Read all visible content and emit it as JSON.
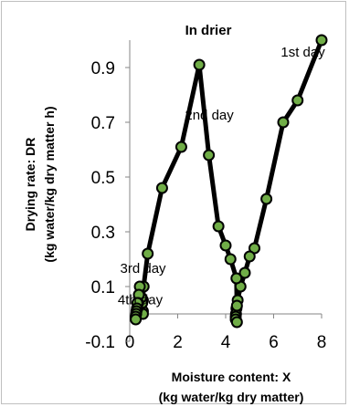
{
  "chart_data": {
    "type": "scatter",
    "title": "In drier",
    "xlabel_line1": "Moisture content: X",
    "xlabel_line2": "(kg water/kg dry matter)",
    "ylabel_line1": "Drying rate: DR",
    "ylabel_line2": "(kg water/kg dry matter h)",
    "xlim": [
      0,
      8
    ],
    "ylim": [
      -0.1,
      1.0
    ],
    "xticks": [
      "0",
      "2",
      "4",
      "6",
      "8"
    ],
    "yticks": [
      "-0.1",
      "0.1",
      "0.3",
      "0.5",
      "0.7",
      "0.9"
    ],
    "xtick_values": [
      0,
      2,
      4,
      6,
      8
    ],
    "ytick_values": [
      -0.1,
      0.1,
      0.3,
      0.5,
      0.7,
      0.9
    ],
    "grid": false,
    "legend": "none",
    "line_color": "#000000",
    "marker_color": "#70ad47",
    "series": [
      {
        "points": [
          [
            8.0,
            1.0
          ],
          [
            7.0,
            0.78
          ],
          [
            6.4,
            0.7
          ],
          [
            5.7,
            0.42
          ],
          [
            5.2,
            0.24
          ],
          [
            5.0,
            0.21
          ],
          [
            4.8,
            0.15
          ],
          [
            4.62,
            0.1
          ],
          [
            4.5,
            0.05
          ],
          [
            4.45,
            0.02
          ],
          [
            4.43,
            0.0
          ],
          [
            4.42,
            -0.01
          ],
          [
            4.42,
            -0.02
          ]
        ]
      },
      {
        "points": [
          [
            4.47,
            -0.03
          ],
          [
            4.47,
            0.03
          ],
          [
            4.45,
            0.13
          ],
          [
            4.2,
            0.2
          ],
          [
            4.0,
            0.25
          ],
          [
            3.7,
            0.32
          ],
          [
            3.3,
            0.58
          ],
          [
            2.9,
            0.91
          ],
          [
            2.15,
            0.61
          ],
          [
            1.35,
            0.46
          ],
          [
            0.75,
            0.22
          ],
          [
            0.58,
            0.1
          ],
          [
            0.55,
            0.05
          ],
          [
            0.55,
            0.01
          ]
        ]
      },
      {
        "points": [
          [
            0.55,
            0.0
          ],
          [
            0.52,
            0.04
          ],
          [
            0.48,
            0.06
          ],
          [
            0.42,
            0.1
          ],
          [
            0.38,
            0.07
          ],
          [
            0.35,
            0.04
          ],
          [
            0.32,
            0.02
          ]
        ]
      },
      {
        "points": [
          [
            0.32,
            0.04
          ],
          [
            0.3,
            0.02
          ],
          [
            0.28,
            0.01
          ],
          [
            0.27,
            0.0
          ],
          [
            0.25,
            -0.01
          ],
          [
            0.25,
            -0.02
          ]
        ]
      }
    ],
    "annotations": [
      {
        "text": "1st day",
        "x": 6.3,
        "y": 0.94
      },
      {
        "text": "2nd day",
        "x": 2.3,
        "y": 0.71
      },
      {
        "text": "3rd day",
        "x": -0.4,
        "y": 0.15
      },
      {
        "text": "4th day",
        "x": -0.5,
        "y": 0.035
      }
    ]
  }
}
